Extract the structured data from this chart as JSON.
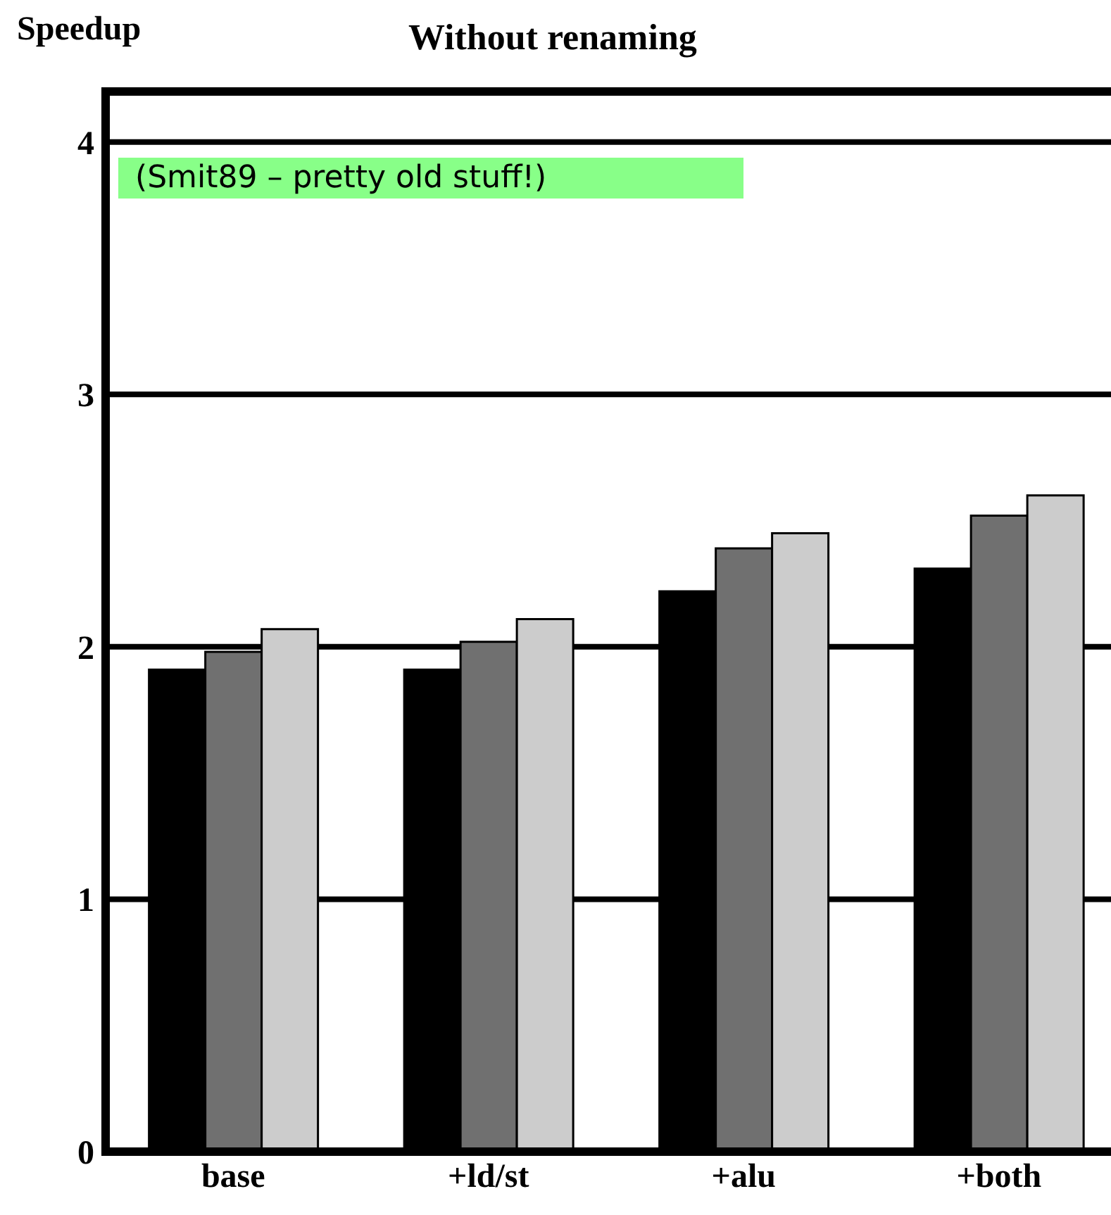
{
  "chart_data": {
    "type": "bar",
    "title": "Without renaming",
    "ylabel": "Speedup",
    "categories": [
      "base",
      "+ld/st",
      "+alu",
      "+both"
    ],
    "series": [
      {
        "color": "#000000",
        "values": [
          1.91,
          1.91,
          2.22,
          2.31
        ]
      },
      {
        "color": "#707070",
        "values": [
          1.98,
          2.02,
          2.39,
          2.52
        ]
      },
      {
        "color": "#cccccc",
        "values": [
          2.07,
          2.11,
          2.45,
          2.6
        ]
      }
    ],
    "ylim": [
      0,
      4.2
    ],
    "yticks": [
      0,
      1,
      2,
      3,
      4
    ],
    "grid": "y",
    "legend": false,
    "annotations": [
      "(Smit89 – pretty old stuff!)"
    ]
  }
}
